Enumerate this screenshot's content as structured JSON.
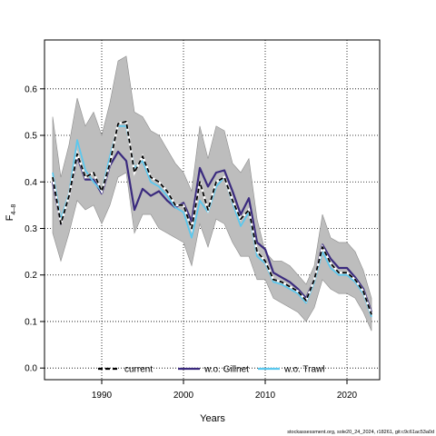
{
  "chart_data": {
    "type": "line",
    "xlabel": "Years",
    "ylabel_main": "F",
    "ylabel_sub": "4–8",
    "xlim": [
      1983,
      2024
    ],
    "ylim": [
      -0.025,
      0.705
    ],
    "x_ticks": [
      1990,
      2000,
      2010,
      2020
    ],
    "y_ticks": [
      0.0,
      0.1,
      0.2,
      0.3,
      0.4,
      0.5,
      0.6
    ],
    "y_tick_labels": [
      "0.0",
      "0.1",
      "0.2",
      "0.3",
      "0.4",
      "0.5",
      "0.6"
    ],
    "grid": "dotted",
    "legend_position": "bottom",
    "x": [
      1984,
      1985,
      1986,
      1987,
      1988,
      1989,
      1990,
      1991,
      1992,
      1993,
      1994,
      1995,
      1996,
      1997,
      1998,
      1999,
      2000,
      2001,
      2002,
      2003,
      2004,
      2005,
      2006,
      2007,
      2008,
      2009,
      2010,
      2011,
      2012,
      2013,
      2014,
      2015,
      2016,
      2017,
      2018,
      2019,
      2020,
      2021,
      2022,
      2023
    ],
    "band": {
      "upper": [
        0.54,
        0.41,
        0.48,
        0.58,
        0.52,
        0.55,
        0.5,
        0.57,
        0.66,
        0.67,
        0.55,
        0.54,
        0.51,
        0.5,
        0.47,
        0.44,
        0.42,
        0.38,
        0.52,
        0.45,
        0.52,
        0.51,
        0.44,
        0.42,
        0.45,
        0.32,
        0.25,
        0.23,
        0.23,
        0.22,
        0.2,
        0.18,
        0.22,
        0.33,
        0.28,
        0.27,
        0.27,
        0.25,
        0.21,
        0.15
      ],
      "lower": [
        0.29,
        0.23,
        0.29,
        0.36,
        0.34,
        0.35,
        0.31,
        0.35,
        0.41,
        0.42,
        0.29,
        0.33,
        0.33,
        0.3,
        0.29,
        0.28,
        0.27,
        0.22,
        0.31,
        0.26,
        0.32,
        0.31,
        0.27,
        0.24,
        0.24,
        0.19,
        0.19,
        0.15,
        0.14,
        0.13,
        0.12,
        0.1,
        0.13,
        0.19,
        0.17,
        0.16,
        0.16,
        0.15,
        0.12,
        0.08
      ]
    },
    "series": [
      {
        "name": "current",
        "color": "#000000",
        "dash": "5,3",
        "values": [
          0.41,
          0.31,
          0.37,
          0.46,
          0.41,
          0.42,
          0.38,
          0.44,
          0.525,
          0.53,
          0.42,
          0.455,
          0.41,
          0.4,
          0.38,
          0.35,
          0.35,
          0.3,
          0.4,
          0.34,
          0.4,
          0.41,
          0.36,
          0.32,
          0.34,
          0.25,
          0.23,
          0.19,
          0.185,
          0.175,
          0.165,
          0.145,
          0.19,
          0.26,
          0.225,
          0.205,
          0.205,
          0.19,
          0.165,
          0.115
        ]
      },
      {
        "name": "w.o. Gillnet",
        "color": "#3a2a7e",
        "dash": "",
        "values": [
          0.4,
          0.31,
          0.37,
          0.455,
          0.405,
          0.405,
          0.375,
          0.435,
          0.465,
          0.445,
          0.34,
          0.385,
          0.37,
          0.38,
          0.36,
          0.345,
          0.355,
          0.315,
          0.43,
          0.39,
          0.42,
          0.425,
          0.38,
          0.33,
          0.365,
          0.27,
          0.255,
          0.205,
          0.195,
          0.185,
          0.17,
          0.15,
          0.19,
          0.265,
          0.235,
          0.215,
          0.215,
          0.195,
          0.17,
          0.12
        ]
      },
      {
        "name": "w.o. Trawl",
        "color": "#5bc8ee",
        "dash": "",
        "values": [
          0.42,
          0.32,
          0.375,
          0.49,
          0.425,
          0.4,
          0.38,
          0.455,
          0.52,
          0.52,
          0.43,
          0.445,
          0.4,
          0.39,
          0.37,
          0.345,
          0.335,
          0.28,
          0.36,
          0.335,
          0.39,
          0.41,
          0.355,
          0.305,
          0.335,
          0.24,
          0.225,
          0.185,
          0.18,
          0.17,
          0.16,
          0.14,
          0.185,
          0.25,
          0.215,
          0.2,
          0.2,
          0.185,
          0.16,
          0.11
        ]
      }
    ]
  },
  "footer": "stockassessment.org, sole20_24_2024, r18261, git:c9c61ac53a0d"
}
